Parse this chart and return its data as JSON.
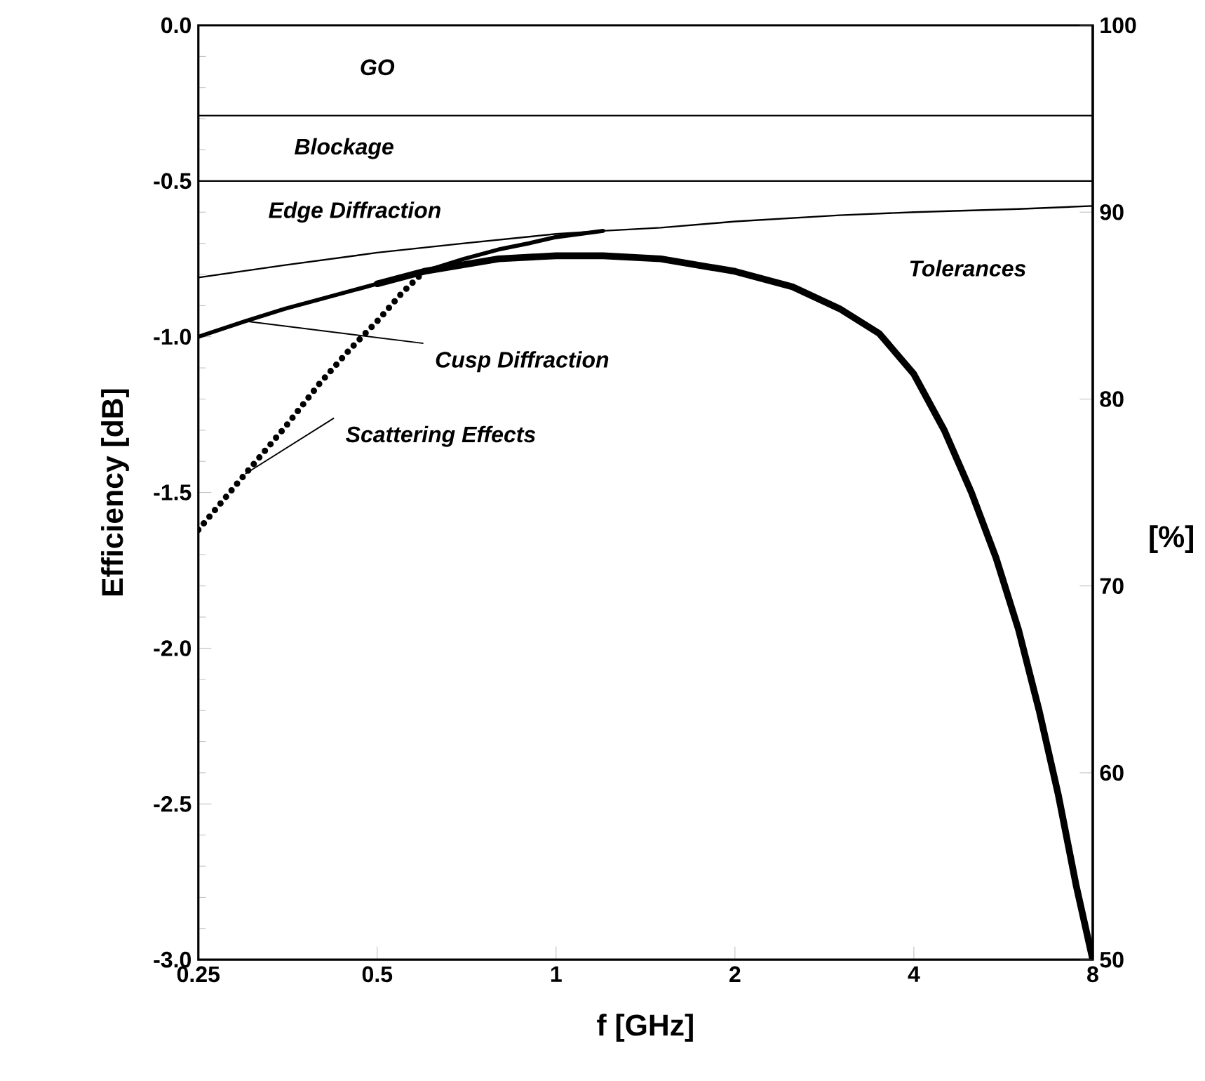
{
  "chart_data": {
    "type": "line",
    "xlabel": "f [GHz]",
    "ylabel": "Efficiency [dB]",
    "y2label": "[%]",
    "log": "x",
    "xlim": [
      0.25,
      8
    ],
    "xticks": [
      0.25,
      0.5,
      1,
      2,
      4,
      8
    ],
    "ylim": [
      -3.0,
      0.0
    ],
    "yticks": [
      {
        "value": 0,
        "label": "0.0"
      },
      -0.5,
      {
        "value": -1,
        "label": "-1.0"
      },
      -1.5,
      {
        "value": -2,
        "label": "-2.0"
      },
      -2.5,
      {
        "value": -3,
        "label": "-3.0"
      }
    ],
    "y2lim": [
      50,
      100
    ],
    "y2ticks": [
      50,
      60,
      70,
      80,
      90,
      100
    ],
    "grid": false,
    "ref_lines": [
      {
        "axis": "y",
        "value": -0.29,
        "color": "#000000"
      },
      {
        "axis": "y",
        "value": -0.5,
        "color": "#000000"
      }
    ],
    "series": [
      {
        "color": "#000000",
        "x": [
          0.25,
          0.35,
          0.5,
          0.7,
          1,
          1.2,
          1.5,
          2,
          3,
          4,
          6,
          8
        ],
        "values": [
          -0.81,
          -0.77,
          -0.73,
          -0.7,
          -0.67,
          -0.66,
          -0.65,
          -0.63,
          -0.61,
          -0.6,
          -0.59,
          -0.58
        ]
      },
      {
        "color": "#000000",
        "x": [
          0.25,
          0.3,
          0.35,
          0.4,
          0.5,
          0.6,
          0.7,
          0.8,
          0.9,
          1.0,
          1.2
        ],
        "values": [
          -1.0,
          -0.95,
          -0.91,
          -0.88,
          -0.83,
          -0.79,
          -0.75,
          -0.72,
          -0.7,
          -0.68,
          -0.66
        ]
      },
      {
        "color": "#000000",
        "line_style": "dotted",
        "x": [
          0.25,
          0.3,
          0.35,
          0.4,
          0.45,
          0.5,
          0.55,
          0.6
        ],
        "values": [
          -1.62,
          -1.44,
          -1.29,
          -1.15,
          -1.04,
          -0.95,
          -0.86,
          -0.79
        ]
      },
      {
        "color": "#000000",
        "x": [
          0.5,
          0.6,
          0.8,
          1,
          1.2,
          1.5,
          2,
          2.5,
          3,
          3.5,
          4,
          4.5,
          5,
          5.5,
          6,
          6.5,
          7,
          7.5,
          8
        ],
        "values": [
          -0.83,
          -0.79,
          -0.75,
          -0.74,
          -0.74,
          -0.75,
          -0.79,
          -0.84,
          -0.91,
          -0.99,
          -1.12,
          -1.3,
          -1.5,
          -1.71,
          -1.94,
          -2.2,
          -2.47,
          -2.76,
          -3.0
        ]
      }
    ],
    "annotations": [
      "GO",
      "Blockage",
      "Edge Diffraction",
      "Tolerances",
      {
        "text": "Cusp Diffraction",
        "x": 0.3,
        "y": -0.95
      },
      {
        "text": "Scattering Effects",
        "x": 0.3,
        "y": -1.44
      }
    ]
  }
}
